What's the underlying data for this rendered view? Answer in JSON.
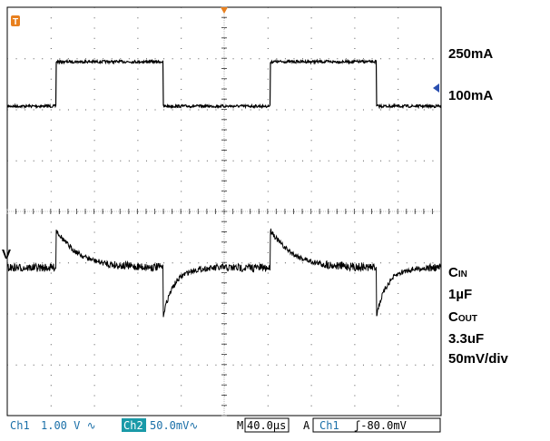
{
  "left_marker": "V",
  "right_labels": {
    "high_level": "250mA",
    "low_level": "100mA",
    "cin": {
      "main": "C",
      "sub": "IN"
    },
    "cin_value": "1µF",
    "cout": {
      "main": "C",
      "sub": "OUT"
    },
    "cout_value": "3.3uF",
    "scale": "50mV/div"
  },
  "status_bar": {
    "ch1": "Ch1",
    "ch1_scale": "1.00 V ∿",
    "ch2": "Ch2",
    "ch2_scale": "50.0mV∿",
    "timebase_prefix": "M",
    "timebase": "40.0µs",
    "trigger_mode": "A",
    "trigger_source": "Ch1",
    "trigger_level": "ʃ-80.0mV"
  },
  "trigger_marker": "T"
}
